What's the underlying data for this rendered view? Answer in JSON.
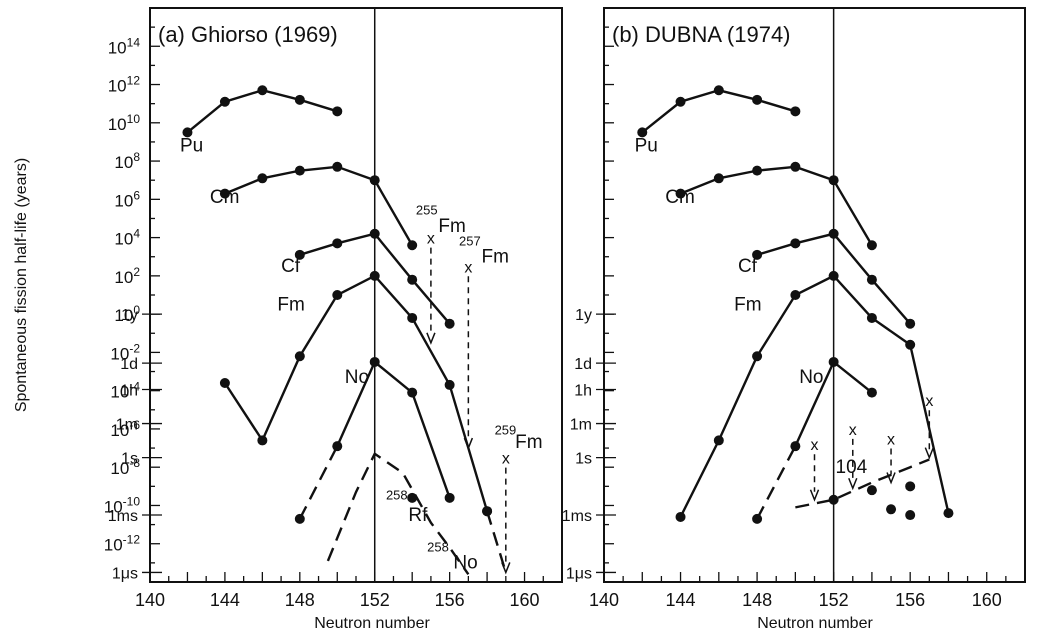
{
  "ylabel": "Spontaneous fission half-life (years)",
  "xlabel": "Neutron number",
  "x_ticks": [
    "140",
    "144",
    "148",
    "152",
    "156",
    "160"
  ],
  "y_ticks": [
    {
      "v": 14,
      "base": "10",
      "exp": "14"
    },
    {
      "v": 12,
      "base": "10",
      "exp": "12"
    },
    {
      "v": 10,
      "base": "10",
      "exp": "10"
    },
    {
      "v": 8,
      "base": "10",
      "exp": "8"
    },
    {
      "v": 6,
      "base": "10",
      "exp": "6"
    },
    {
      "v": 4,
      "base": "10",
      "exp": "4"
    },
    {
      "v": 2,
      "base": "10",
      "exp": "2"
    },
    {
      "v": 0,
      "base": "10",
      "exp": "0"
    },
    {
      "v": -2,
      "base": "10",
      "exp": "-2"
    },
    {
      "v": -4,
      "base": "10",
      "exp": "-4"
    },
    {
      "v": -6,
      "base": "10",
      "exp": "-6"
    },
    {
      "v": -8,
      "base": "10",
      "exp": "-8"
    },
    {
      "v": -10,
      "base": "10",
      "exp": "-10"
    },
    {
      "v": -12,
      "base": "10",
      "exp": "-12"
    }
  ],
  "time_ticks": [
    {
      "v": 0,
      "label": "1y"
    },
    {
      "v": -2.56,
      "label": "1d"
    },
    {
      "v": -3.94,
      "label": "1h"
    },
    {
      "v": -5.72,
      "label": "1m"
    },
    {
      "v": -7.5,
      "label": "1s"
    },
    {
      "v": -10.5,
      "label": "1ms"
    },
    {
      "v": -13.5,
      "label": "1μs"
    }
  ],
  "chart_data": [
    {
      "type": "line",
      "title": "(a) Ghiorso (1969)",
      "xlabel": "Neutron number",
      "ylabel": "Spontaneous fission half-life (years)",
      "xlim": [
        140,
        162
      ],
      "ylim": [
        -14,
        16
      ],
      "y_scale": "log10",
      "vline": 152,
      "series": [
        {
          "name": "Pu",
          "style": "solid",
          "points": [
            [
              142,
              9.5
            ],
            [
              144,
              11.1
            ],
            [
              146,
              11.7
            ],
            [
              148,
              11.2
            ],
            [
              150,
              10.6
            ]
          ]
        },
        {
          "name": "Cm",
          "style": "solid",
          "points": [
            [
              144,
              6.3
            ],
            [
              146,
              7.1
            ],
            [
              148,
              7.5
            ],
            [
              150,
              7.7
            ],
            [
              152,
              7.0
            ],
            [
              154,
              3.6
            ]
          ]
        },
        {
          "name": "Cf",
          "style": "solid",
          "points": [
            [
              148,
              3.1
            ],
            [
              150,
              3.7
            ],
            [
              152,
              4.2
            ],
            [
              154,
              1.8
            ],
            [
              156,
              -0.5
            ]
          ]
        },
        {
          "name": "Fm",
          "style": "solid",
          "points": [
            [
              144,
              -3.6
            ],
            [
              146,
              -6.6
            ],
            [
              148,
              -2.2
            ],
            [
              150,
              1.0
            ],
            [
              152,
              2.0
            ],
            [
              154,
              -0.2
            ],
            [
              156,
              -3.7
            ],
            [
              158,
              -10.3
            ]
          ]
        },
        {
          "name": "Fm",
          "style": "dashed",
          "points": [
            [
              158,
              -10.3
            ],
            [
              159,
              -13.5
            ]
          ]
        },
        {
          "name": "No",
          "style": "solid",
          "points": [
            [
              150,
              -6.9
            ],
            [
              152,
              -2.5
            ],
            [
              154,
              -4.1
            ],
            [
              156,
              -9.6
            ]
          ]
        },
        {
          "name": "No",
          "style": "dashed",
          "points": [
            [
              148,
              -10.7
            ],
            [
              150,
              -6.9
            ]
          ]
        },
        {
          "name": "Rf",
          "style": "dashed",
          "points": [
            [
              149.5,
              -12.9
            ],
            [
              151,
              -9.3
            ],
            [
              152,
              -7.3
            ],
            [
              153.5,
              -8.3
            ],
            [
              155,
              -10.9
            ],
            [
              156,
              -12.2
            ],
            [
              157,
              -13.6
            ]
          ]
        },
        {
          "name": "Rf",
          "style": "marker",
          "points": [
            [
              154,
              -9.6
            ]
          ]
        }
      ],
      "markers_x": [
        {
          "label": "255",
          "nuclide": "Fm",
          "x": 155,
          "y": 4.0,
          "y_end": -1.5
        },
        {
          "label": "257",
          "nuclide": "Fm",
          "x": 157,
          "y": 2.5,
          "y_end": -7.0
        },
        {
          "label": "259",
          "nuclide": "Fm",
          "x": 159,
          "y": -7.5,
          "y_end": -13.5
        }
      ],
      "labels": [
        {
          "text": "Pu",
          "x": 141.6,
          "y": 8.5
        },
        {
          "text": "Cm",
          "x": 143.2,
          "y": 5.8
        },
        {
          "text": "Cf",
          "x": 147.0,
          "y": 2.2
        },
        {
          "text": "Fm",
          "x": 146.8,
          "y": 0.2
        },
        {
          "text": "No",
          "x": 150.4,
          "y": -3.6
        },
        {
          "text": "Rf",
          "x": 153.8,
          "y": -10.8
        },
        {
          "text": "No",
          "x": 156.2,
          "y": -13.3
        }
      ],
      "superscripts": [
        {
          "text": "255",
          "x": 154.2,
          "y": 5.2,
          "nuc": "Fm",
          "nx": 155.4,
          "ny": 4.3
        },
        {
          "text": "257",
          "x": 156.5,
          "y": 3.6,
          "nuc": "Fm",
          "nx": 157.7,
          "ny": 2.7
        },
        {
          "text": "259",
          "x": 158.4,
          "y": -6.3,
          "nuc": "Fm",
          "nx": 159.5,
          "ny": -7.0
        },
        {
          "text": "258",
          "x": 152.6,
          "y": -9.7,
          "nuc": "",
          "nx": 0,
          "ny": 0
        },
        {
          "text": "258",
          "x": 154.8,
          "y": -12.4,
          "nuc": "",
          "nx": 0,
          "ny": 0
        }
      ]
    },
    {
      "type": "line",
      "title": "(b) DUBNA (1974)",
      "xlabel": "Neutron number",
      "ylabel": "",
      "xlim": [
        140,
        162
      ],
      "ylim": [
        -14,
        16
      ],
      "y_scale": "log10",
      "vline": 152,
      "series": [
        {
          "name": "Pu",
          "style": "solid",
          "points": [
            [
              142,
              9.5
            ],
            [
              144,
              11.1
            ],
            [
              146,
              11.7
            ],
            [
              148,
              11.2
            ],
            [
              150,
              10.6
            ]
          ]
        },
        {
          "name": "Cm",
          "style": "solid",
          "points": [
            [
              144,
              6.3
            ],
            [
              146,
              7.1
            ],
            [
              148,
              7.5
            ],
            [
              150,
              7.7
            ],
            [
              152,
              7.0
            ],
            [
              154,
              3.6
            ]
          ]
        },
        {
          "name": "Cf",
          "style": "solid",
          "points": [
            [
              148,
              3.1
            ],
            [
              150,
              3.7
            ],
            [
              152,
              4.2
            ],
            [
              154,
              1.8
            ],
            [
              156,
              -0.5
            ]
          ]
        },
        {
          "name": "Fm",
          "style": "solid",
          "points": [
            [
              144,
              -10.6
            ],
            [
              146,
              -6.6
            ],
            [
              148,
              -2.2
            ],
            [
              150,
              1.0
            ],
            [
              152,
              2.0
            ],
            [
              154,
              -0.2
            ],
            [
              156,
              -1.6
            ],
            [
              158,
              -10.4
            ]
          ]
        },
        {
          "name": "No",
          "style": "solid",
          "points": [
            [
              150,
              -6.9
            ],
            [
              152,
              -2.5
            ],
            [
              154,
              -4.1
            ]
          ]
        },
        {
          "name": "No",
          "style": "dashed",
          "points": [
            [
              148,
              -10.7
            ],
            [
              150,
              -6.9
            ]
          ]
        },
        {
          "name": "104",
          "style": "dashed",
          "points": [
            [
              150,
              -10.1
            ],
            [
              152,
              -9.7
            ],
            [
              154,
              -8.8
            ],
            [
              156,
              -8.0
            ],
            [
              157,
              -7.6
            ]
          ]
        },
        {
          "name": "104",
          "style": "marker",
          "points": [
            [
              152,
              -9.7
            ],
            [
              154,
              -9.2
            ],
            [
              155,
              -10.2
            ],
            [
              156,
              -10.5
            ],
            [
              156,
              -9.0
            ]
          ]
        }
      ],
      "markers_x": [
        {
          "label": "",
          "nuclide": "",
          "x": 151,
          "y": -6.8,
          "y_end": -9.7
        },
        {
          "label": "",
          "nuclide": "",
          "x": 153,
          "y": -6.0,
          "y_end": -9.1
        },
        {
          "label": "",
          "nuclide": "",
          "x": 155,
          "y": -6.5,
          "y_end": -8.8
        },
        {
          "label": "",
          "nuclide": "",
          "x": 157,
          "y": -4.5,
          "y_end": -7.5
        }
      ],
      "labels": [
        {
          "text": "Pu",
          "x": 141.6,
          "y": 8.5
        },
        {
          "text": "Cm",
          "x": 143.2,
          "y": 5.8
        },
        {
          "text": "Cf",
          "x": 147.0,
          "y": 2.2
        },
        {
          "text": "Fm",
          "x": 146.8,
          "y": 0.2
        },
        {
          "text": "No",
          "x": 150.2,
          "y": -3.6
        },
        {
          "text": "104",
          "x": 152.1,
          "y": -8.3
        }
      ],
      "superscripts": []
    }
  ]
}
